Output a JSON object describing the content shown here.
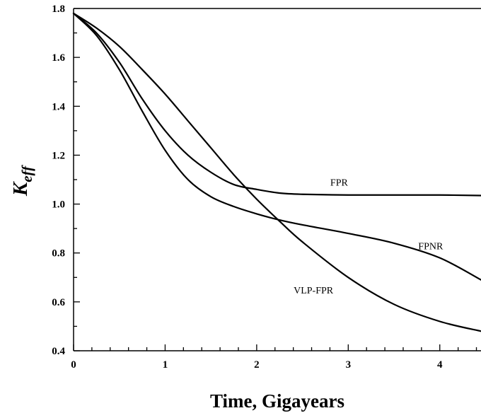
{
  "chart_data": {
    "type": "line",
    "title": "",
    "xlabel": "Time, Gigayears",
    "ylabel_main": "K",
    "ylabel_sub": "eff",
    "xlim": [
      0,
      4.45
    ],
    "ylim": [
      0.4,
      1.8
    ],
    "x_ticks": [
      0,
      1,
      2,
      3,
      4
    ],
    "y_ticks": [
      0.4,
      0.6,
      0.8,
      1.0,
      1.2,
      1.4,
      1.6,
      1.8
    ],
    "y_tick_labels": [
      "0.4",
      "0.6",
      "0.8",
      "1.0",
      "1.2",
      "1.4",
      "1.6",
      "1.8"
    ],
    "x_tick_labels": [
      "0",
      "1",
      "2",
      "3",
      "4"
    ],
    "grid": false,
    "series": [
      {
        "name": "FPR",
        "x": [
          0,
          0.25,
          0.5,
          0.75,
          1.0,
          1.25,
          1.5,
          1.75,
          2.0,
          2.25,
          2.5,
          3.0,
          3.5,
          4.0,
          4.45
        ],
        "y": [
          1.78,
          1.7,
          1.58,
          1.43,
          1.3,
          1.2,
          1.13,
          1.08,
          1.06,
          1.045,
          1.04,
          1.037,
          1.037,
          1.037,
          1.035
        ]
      },
      {
        "name": "FPNR",
        "x": [
          0,
          0.25,
          0.5,
          0.75,
          1.0,
          1.25,
          1.5,
          1.75,
          2.0,
          2.25,
          2.5,
          3.0,
          3.5,
          4.0,
          4.45
        ],
        "y": [
          1.78,
          1.69,
          1.55,
          1.38,
          1.22,
          1.1,
          1.03,
          0.99,
          0.96,
          0.935,
          0.915,
          0.88,
          0.84,
          0.78,
          0.69
        ]
      },
      {
        "name": "VLP-FPR",
        "x": [
          0,
          0.25,
          0.5,
          0.75,
          1.0,
          1.25,
          1.5,
          1.75,
          2.0,
          2.25,
          2.5,
          3.0,
          3.5,
          4.0,
          4.45
        ],
        "y": [
          1.78,
          1.72,
          1.645,
          1.55,
          1.45,
          1.34,
          1.23,
          1.12,
          1.02,
          0.93,
          0.845,
          0.7,
          0.59,
          0.52,
          0.48
        ]
      }
    ],
    "labels": [
      {
        "text": "FPR",
        "x": 2.9,
        "y": 1.075
      },
      {
        "text": "FPNR",
        "x": 3.9,
        "y": 0.815
      },
      {
        "text": "VLP-FPR",
        "x": 2.62,
        "y": 0.635
      }
    ]
  }
}
